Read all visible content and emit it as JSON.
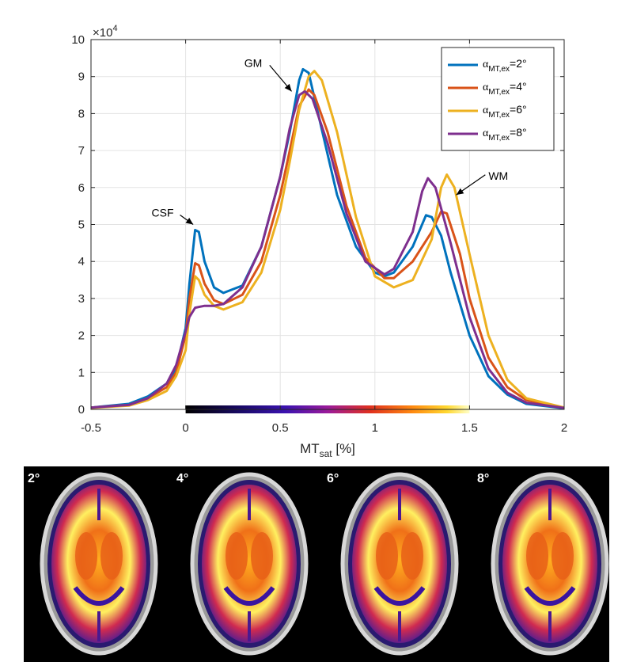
{
  "chart_data": {
    "type": "line",
    "title": "",
    "xlabel_main": "MT",
    "xlabel_sub": "sat",
    "xlabel_unit": " [%]",
    "ylabel": "",
    "y_multiplier": "×10",
    "y_multiplier_exp": "4",
    "xlim": [
      -0.5,
      2
    ],
    "ylim": [
      0,
      10
    ],
    "xticks": [
      "-0.5",
      "0",
      "0.5",
      "1",
      "1.5",
      "2"
    ],
    "yticks": [
      "0",
      "1",
      "2",
      "3",
      "4",
      "5",
      "6",
      "7",
      "8",
      "9",
      "10"
    ],
    "grid": true,
    "legend_position": "top-right",
    "colorbar_range": [
      0,
      1.5
    ],
    "series": [
      {
        "name": "2°",
        "color": "#0072BD",
        "points": [
          [
            -0.5,
            0.05
          ],
          [
            -0.3,
            0.15
          ],
          [
            -0.2,
            0.35
          ],
          [
            -0.1,
            0.7
          ],
          [
            -0.05,
            1.1
          ],
          [
            0,
            2.2
          ],
          [
            0.02,
            3.4
          ],
          [
            0.05,
            4.85
          ],
          [
            0.07,
            4.8
          ],
          [
            0.1,
            4.0
          ],
          [
            0.15,
            3.3
          ],
          [
            0.2,
            3.15
          ],
          [
            0.3,
            3.35
          ],
          [
            0.4,
            4.4
          ],
          [
            0.5,
            6.3
          ],
          [
            0.55,
            7.5
          ],
          [
            0.6,
            8.9
          ],
          [
            0.62,
            9.2
          ],
          [
            0.65,
            9.1
          ],
          [
            0.7,
            8.0
          ],
          [
            0.8,
            5.8
          ],
          [
            0.9,
            4.4
          ],
          [
            1.0,
            3.7
          ],
          [
            1.05,
            3.6
          ],
          [
            1.1,
            3.7
          ],
          [
            1.2,
            4.4
          ],
          [
            1.27,
            5.25
          ],
          [
            1.3,
            5.2
          ],
          [
            1.35,
            4.7
          ],
          [
            1.4,
            3.7
          ],
          [
            1.5,
            2.0
          ],
          [
            1.6,
            0.9
          ],
          [
            1.7,
            0.4
          ],
          [
            1.8,
            0.15
          ],
          [
            2.0,
            0.03
          ]
        ]
      },
      {
        "name": "4°",
        "color": "#D95319",
        "points": [
          [
            -0.5,
            0.05
          ],
          [
            -0.3,
            0.12
          ],
          [
            -0.2,
            0.3
          ],
          [
            -0.1,
            0.6
          ],
          [
            -0.05,
            1.0
          ],
          [
            0,
            2.0
          ],
          [
            0.02,
            3.0
          ],
          [
            0.05,
            3.95
          ],
          [
            0.07,
            3.9
          ],
          [
            0.1,
            3.4
          ],
          [
            0.15,
            2.95
          ],
          [
            0.2,
            2.85
          ],
          [
            0.3,
            3.1
          ],
          [
            0.4,
            4.0
          ],
          [
            0.5,
            5.8
          ],
          [
            0.55,
            7.0
          ],
          [
            0.6,
            8.2
          ],
          [
            0.65,
            8.65
          ],
          [
            0.68,
            8.5
          ],
          [
            0.75,
            7.5
          ],
          [
            0.85,
            5.5
          ],
          [
            0.95,
            4.1
          ],
          [
            1.05,
            3.55
          ],
          [
            1.1,
            3.55
          ],
          [
            1.2,
            4.0
          ],
          [
            1.3,
            4.8
          ],
          [
            1.35,
            5.35
          ],
          [
            1.38,
            5.3
          ],
          [
            1.45,
            4.2
          ],
          [
            1.5,
            3.0
          ],
          [
            1.6,
            1.4
          ],
          [
            1.7,
            0.6
          ],
          [
            1.8,
            0.25
          ],
          [
            2.0,
            0.05
          ]
        ]
      },
      {
        "name": "6°",
        "color": "#EDB120",
        "points": [
          [
            -0.5,
            0.04
          ],
          [
            -0.3,
            0.1
          ],
          [
            -0.2,
            0.25
          ],
          [
            -0.1,
            0.5
          ],
          [
            -0.05,
            0.9
          ],
          [
            0,
            1.6
          ],
          [
            0.02,
            2.6
          ],
          [
            0.05,
            3.6
          ],
          [
            0.07,
            3.5
          ],
          [
            0.1,
            3.1
          ],
          [
            0.15,
            2.8
          ],
          [
            0.2,
            2.7
          ],
          [
            0.3,
            2.9
          ],
          [
            0.4,
            3.7
          ],
          [
            0.5,
            5.4
          ],
          [
            0.55,
            6.7
          ],
          [
            0.6,
            8.1
          ],
          [
            0.65,
            9.0
          ],
          [
            0.68,
            9.15
          ],
          [
            0.72,
            8.9
          ],
          [
            0.8,
            7.5
          ],
          [
            0.9,
            5.2
          ],
          [
            1.0,
            3.6
          ],
          [
            1.1,
            3.3
          ],
          [
            1.2,
            3.5
          ],
          [
            1.3,
            4.6
          ],
          [
            1.35,
            6.0
          ],
          [
            1.38,
            6.35
          ],
          [
            1.42,
            6.0
          ],
          [
            1.5,
            4.2
          ],
          [
            1.6,
            2.0
          ],
          [
            1.7,
            0.8
          ],
          [
            1.8,
            0.3
          ],
          [
            2.0,
            0.05
          ]
        ]
      },
      {
        "name": "8°",
        "color": "#7E2F8E",
        "points": [
          [
            -0.5,
            0.05
          ],
          [
            -0.3,
            0.12
          ],
          [
            -0.2,
            0.3
          ],
          [
            -0.1,
            0.7
          ],
          [
            -0.05,
            1.2
          ],
          [
            0,
            2.1
          ],
          [
            0.02,
            2.5
          ],
          [
            0.05,
            2.75
          ],
          [
            0.1,
            2.8
          ],
          [
            0.15,
            2.8
          ],
          [
            0.2,
            2.85
          ],
          [
            0.3,
            3.3
          ],
          [
            0.4,
            4.4
          ],
          [
            0.5,
            6.3
          ],
          [
            0.55,
            7.6
          ],
          [
            0.6,
            8.5
          ],
          [
            0.63,
            8.6
          ],
          [
            0.67,
            8.4
          ],
          [
            0.75,
            7.2
          ],
          [
            0.85,
            5.3
          ],
          [
            0.95,
            4.0
          ],
          [
            1.05,
            3.65
          ],
          [
            1.1,
            3.8
          ],
          [
            1.2,
            4.8
          ],
          [
            1.25,
            5.9
          ],
          [
            1.28,
            6.25
          ],
          [
            1.32,
            6.0
          ],
          [
            1.4,
            4.5
          ],
          [
            1.5,
            2.5
          ],
          [
            1.6,
            1.1
          ],
          [
            1.7,
            0.45
          ],
          [
            1.8,
            0.18
          ],
          [
            2.0,
            0.04
          ]
        ]
      }
    ],
    "annotations": [
      {
        "text": "CSF",
        "tx": -0.18,
        "ty": 5.3,
        "ax": 0.04,
        "ay": 5.0
      },
      {
        "text": "GM",
        "tx": 0.31,
        "ty": 9.35,
        "ax": 0.56,
        "ay": 8.6
      },
      {
        "text": "WM",
        "tx": 1.6,
        "ty": 6.3,
        "ax": 1.43,
        "ay": 5.8
      }
    ]
  },
  "images": {
    "labels": [
      "2°",
      "4°",
      "6°",
      "8°"
    ]
  }
}
